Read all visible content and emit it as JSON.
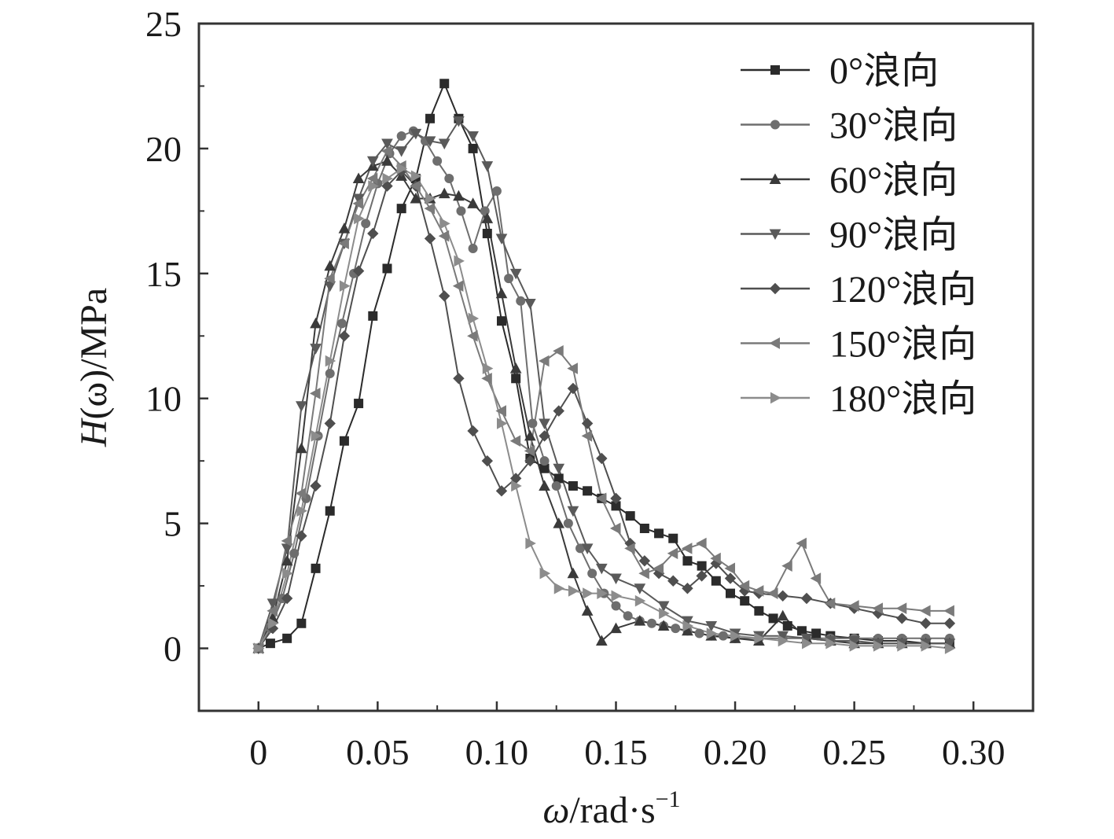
{
  "chart_data": {
    "type": "line",
    "xlabel": {
      "symbol": "ω",
      "unit": "/rad·s",
      "exp": "−1"
    },
    "ylabel": {
      "symbol": "H",
      "arg": "(ω)",
      "unit": "/MPa"
    },
    "xlim": [
      -0.025,
      0.325
    ],
    "ylim": [
      -2.5,
      25
    ],
    "xticks": [
      0,
      0.05,
      0.1,
      0.15,
      0.2,
      0.25,
      0.3
    ],
    "xtick_labels": [
      "0",
      "0.05",
      "0.10",
      "0.15",
      "0.20",
      "0.25",
      "0.30"
    ],
    "yticks": [
      0,
      5,
      10,
      15,
      20,
      25
    ],
    "ytick_labels": [
      "0",
      "5",
      "10",
      "15",
      "20",
      "25"
    ],
    "grid": false,
    "legend_position": "top-right",
    "series": [
      {
        "name": "0°浪向",
        "marker": "square",
        "color": "#2b2b2b",
        "x": [
          0,
          0.005,
          0.012,
          0.018,
          0.024,
          0.03,
          0.036,
          0.042,
          0.048,
          0.054,
          0.06,
          0.066,
          0.072,
          0.078,
          0.084,
          0.09,
          0.096,
          0.102,
          0.108,
          0.114,
          0.12,
          0.126,
          0.132,
          0.138,
          0.144,
          0.15,
          0.156,
          0.162,
          0.168,
          0.174,
          0.18,
          0.186,
          0.192,
          0.198,
          0.204,
          0.21,
          0.216,
          0.222,
          0.228,
          0.234,
          0.24,
          0.25,
          0.26,
          0.27,
          0.28,
          0.29
        ],
        "y": [
          0,
          0.2,
          0.4,
          1.0,
          3.2,
          5.5,
          8.3,
          9.8,
          13.3,
          15.2,
          17.6,
          18.8,
          21.2,
          22.6,
          21.2,
          20.0,
          16.6,
          13.1,
          10.8,
          7.6,
          7.2,
          6.8,
          6.5,
          6.3,
          6.0,
          5.7,
          5.3,
          4.8,
          4.6,
          4.4,
          3.5,
          3.3,
          2.7,
          2.2,
          1.9,
          1.5,
          1.2,
          0.9,
          0.7,
          0.6,
          0.5,
          0.4,
          0.3,
          0.3,
          0.2,
          0.2
        ]
      },
      {
        "name": "30°浪向",
        "marker": "circle",
        "color": "#6e6e6e",
        "x": [
          0,
          0.005,
          0.01,
          0.015,
          0.02,
          0.025,
          0.03,
          0.035,
          0.04,
          0.045,
          0.05,
          0.055,
          0.06,
          0.065,
          0.07,
          0.075,
          0.08,
          0.085,
          0.09,
          0.095,
          0.1,
          0.105,
          0.11,
          0.115,
          0.12,
          0.125,
          0.13,
          0.135,
          0.14,
          0.145,
          0.15,
          0.155,
          0.16,
          0.165,
          0.17,
          0.175,
          0.18,
          0.185,
          0.19,
          0.195,
          0.2,
          0.21,
          0.22,
          0.23,
          0.24,
          0.25,
          0.26,
          0.27,
          0.28,
          0.29
        ],
        "y": [
          0,
          0.8,
          2.0,
          3.8,
          6.0,
          8.5,
          11.0,
          13.0,
          15.0,
          17.0,
          18.6,
          19.8,
          20.5,
          20.7,
          20.3,
          19.5,
          18.8,
          17.5,
          16.0,
          17.5,
          18.3,
          14.8,
          13.9,
          9.0,
          7.5,
          6.5,
          5.0,
          4.0,
          3.0,
          2.2,
          1.7,
          1.3,
          1.1,
          1.0,
          0.9,
          0.8,
          0.7,
          0.6,
          0.5,
          0.5,
          0.4,
          0.4,
          0.4,
          0.4,
          0.4,
          0.4,
          0.4,
          0.4,
          0.4,
          0.4
        ]
      },
      {
        "name": "60°浪向",
        "marker": "triangle-up",
        "color": "#3a3a3a",
        "x": [
          0,
          0.006,
          0.012,
          0.018,
          0.024,
          0.03,
          0.036,
          0.042,
          0.048,
          0.054,
          0.06,
          0.066,
          0.072,
          0.078,
          0.084,
          0.09,
          0.096,
          0.102,
          0.108,
          0.114,
          0.12,
          0.126,
          0.132,
          0.138,
          0.144,
          0.15,
          0.16,
          0.17,
          0.18,
          0.19,
          0.2,
          0.21,
          0.22,
          0.23,
          0.24,
          0.25,
          0.26,
          0.27,
          0.28,
          0.29
        ],
        "y": [
          0,
          1.2,
          3.5,
          8.0,
          13.0,
          15.3,
          16.8,
          18.8,
          19.3,
          19.5,
          18.9,
          18.0,
          18.0,
          18.2,
          18.1,
          17.8,
          17.2,
          14.2,
          11.2,
          8.5,
          6.5,
          5.0,
          3.0,
          1.5,
          0.3,
          0.8,
          1.1,
          0.9,
          0.7,
          0.5,
          0.4,
          0.3,
          1.3,
          0.4,
          0.3,
          0.2,
          0.2,
          0.2,
          0.2,
          0.2
        ]
      },
      {
        "name": "90°浪向",
        "marker": "triangle-down",
        "color": "#5a5a5a",
        "x": [
          0,
          0.006,
          0.012,
          0.018,
          0.024,
          0.03,
          0.036,
          0.042,
          0.048,
          0.054,
          0.06,
          0.066,
          0.072,
          0.078,
          0.084,
          0.09,
          0.096,
          0.102,
          0.108,
          0.114,
          0.12,
          0.126,
          0.132,
          0.138,
          0.144,
          0.15,
          0.16,
          0.17,
          0.18,
          0.19,
          0.2,
          0.21,
          0.22,
          0.23,
          0.24,
          0.25,
          0.26,
          0.27,
          0.28,
          0.29
        ],
        "y": [
          0,
          1.8,
          4.0,
          9.7,
          12.0,
          14.5,
          16.2,
          18.0,
          19.5,
          20.2,
          19.9,
          20.6,
          20.3,
          20.2,
          21.1,
          20.5,
          19.3,
          16.4,
          15.0,
          13.8,
          9.0,
          7.2,
          5.5,
          4.0,
          3.2,
          2.8,
          2.4,
          1.7,
          1.1,
          0.9,
          0.6,
          0.5,
          0.5,
          0.4,
          0.3,
          0.3,
          0.2,
          0.2,
          0.2,
          0.2
        ]
      },
      {
        "name": "120°浪向",
        "marker": "diamond",
        "color": "#4f4f4f",
        "x": [
          0,
          0.006,
          0.012,
          0.018,
          0.024,
          0.03,
          0.036,
          0.042,
          0.048,
          0.054,
          0.06,
          0.066,
          0.072,
          0.078,
          0.084,
          0.09,
          0.096,
          0.102,
          0.108,
          0.114,
          0.12,
          0.126,
          0.132,
          0.138,
          0.144,
          0.15,
          0.156,
          0.162,
          0.168,
          0.174,
          0.18,
          0.186,
          0.192,
          0.198,
          0.204,
          0.21,
          0.22,
          0.23,
          0.24,
          0.25,
          0.26,
          0.27,
          0.28,
          0.29
        ],
        "y": [
          0,
          0.8,
          2.0,
          4.5,
          6.5,
          9.0,
          12.5,
          15.1,
          16.6,
          18.5,
          19.1,
          18.5,
          16.4,
          14.1,
          10.8,
          8.7,
          7.5,
          6.3,
          6.8,
          7.5,
          8.5,
          9.5,
          10.4,
          9.0,
          7.6,
          6.0,
          4.2,
          3.5,
          3.0,
          2.7,
          2.4,
          2.9,
          3.4,
          2.8,
          2.3,
          2.2,
          2.1,
          2.0,
          1.8,
          1.6,
          1.4,
          1.2,
          1.0,
          1.0
        ]
      },
      {
        "name": "150°浪向",
        "marker": "triangle-left",
        "color": "#7a7a7a",
        "x": [
          0,
          0.006,
          0.012,
          0.018,
          0.024,
          0.03,
          0.036,
          0.042,
          0.048,
          0.054,
          0.06,
          0.066,
          0.072,
          0.078,
          0.084,
          0.09,
          0.096,
          0.102,
          0.108,
          0.114,
          0.12,
          0.126,
          0.132,
          0.138,
          0.144,
          0.15,
          0.156,
          0.162,
          0.168,
          0.174,
          0.18,
          0.186,
          0.192,
          0.198,
          0.204,
          0.21,
          0.216,
          0.222,
          0.228,
          0.234,
          0.24,
          0.25,
          0.26,
          0.27,
          0.28,
          0.29
        ],
        "y": [
          0,
          1.5,
          4.3,
          6.2,
          10.2,
          14.8,
          16.2,
          17.8,
          18.8,
          19.9,
          19.3,
          18.5,
          17.6,
          16.5,
          14.5,
          12.5,
          10.8,
          9.5,
          8.3,
          7.9,
          11.5,
          11.9,
          11.2,
          8.5,
          6.0,
          4.8,
          4.0,
          3.0,
          3.2,
          3.8,
          4.0,
          4.2,
          3.6,
          3.2,
          2.5,
          2.3,
          2.2,
          3.3,
          4.2,
          2.8,
          1.8,
          1.7,
          1.6,
          1.6,
          1.5,
          1.5
        ]
      },
      {
        "name": "180°浪向",
        "marker": "triangle-right",
        "color": "#8c8c8c",
        "x": [
          0,
          0.006,
          0.012,
          0.018,
          0.024,
          0.03,
          0.036,
          0.042,
          0.048,
          0.054,
          0.06,
          0.066,
          0.072,
          0.078,
          0.084,
          0.09,
          0.096,
          0.102,
          0.108,
          0.114,
          0.12,
          0.126,
          0.132,
          0.138,
          0.144,
          0.15,
          0.16,
          0.17,
          0.18,
          0.19,
          0.2,
          0.21,
          0.22,
          0.23,
          0.24,
          0.25,
          0.26,
          0.27,
          0.28,
          0.29
        ],
        "y": [
          0,
          1.0,
          3.0,
          5.5,
          8.5,
          11.5,
          14.5,
          17.2,
          18.5,
          18.8,
          19.2,
          18.9,
          18.0,
          17.0,
          15.5,
          13.2,
          11.2,
          9.0,
          6.5,
          4.2,
          3.0,
          2.4,
          2.3,
          2.2,
          2.2,
          2.1,
          1.9,
          1.4,
          0.9,
          0.6,
          0.5,
          0.4,
          0.3,
          0.2,
          0.2,
          0.1,
          0.1,
          0.1,
          0.1,
          0.0
        ]
      }
    ]
  }
}
